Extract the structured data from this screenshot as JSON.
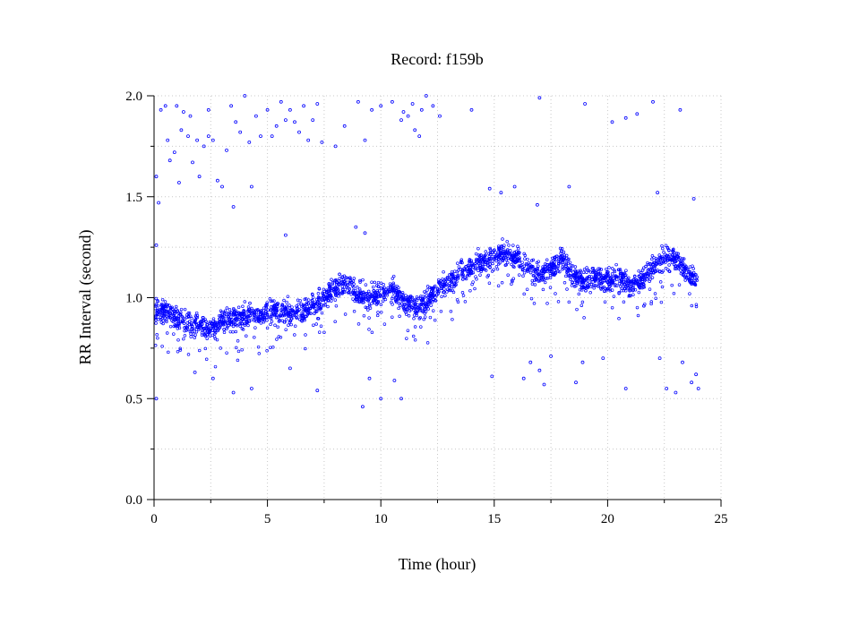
{
  "chart_data": {
    "type": "scatter",
    "title": "Record:  f159b",
    "xlabel": "Time (hour)",
    "ylabel": "RR Interval (second)",
    "xlim": [
      0,
      25
    ],
    "ylim": [
      0,
      2.0
    ],
    "x_ticks": [
      0,
      5,
      10,
      15,
      20,
      25
    ],
    "x_tick_labels": [
      "0",
      "5",
      "10",
      "15",
      "20",
      "25"
    ],
    "y_ticks": [
      0,
      0.5,
      1.0,
      1.5,
      2.0
    ],
    "y_tick_labels": [
      "0.0",
      "0.5",
      "1.0",
      "1.5",
      "2.0"
    ],
    "grid": true,
    "marker_color": "#0000ff",
    "series": [
      {
        "values_note": "",
        "trend": [
          [
            0.0,
            0.95
          ],
          [
            0.5,
            0.93
          ],
          [
            1.0,
            0.9
          ],
          [
            1.5,
            0.88
          ],
          [
            2.0,
            0.86
          ],
          [
            2.5,
            0.85
          ],
          [
            3.0,
            0.88
          ],
          [
            3.5,
            0.9
          ],
          [
            4.0,
            0.92
          ],
          [
            4.5,
            0.9
          ],
          [
            5.0,
            0.92
          ],
          [
            5.5,
            0.94
          ],
          [
            6.0,
            0.93
          ],
          [
            6.5,
            0.94
          ],
          [
            7.0,
            0.96
          ],
          [
            7.5,
            1.0
          ],
          [
            8.0,
            1.04
          ],
          [
            8.5,
            1.08
          ],
          [
            9.0,
            1.02
          ],
          [
            9.5,
            1.0
          ],
          [
            10.0,
            1.02
          ],
          [
            10.5,
            1.05
          ],
          [
            11.0,
            0.98
          ],
          [
            11.5,
            0.95
          ],
          [
            12.0,
            0.97
          ],
          [
            12.5,
            1.05
          ],
          [
            13.0,
            1.08
          ],
          [
            13.5,
            1.12
          ],
          [
            14.0,
            1.15
          ],
          [
            14.5,
            1.18
          ],
          [
            15.0,
            1.2
          ],
          [
            15.5,
            1.22
          ],
          [
            16.0,
            1.2
          ],
          [
            16.5,
            1.15
          ],
          [
            17.0,
            1.12
          ],
          [
            17.5,
            1.15
          ],
          [
            18.0,
            1.2
          ],
          [
            18.5,
            1.1
          ],
          [
            19.0,
            1.08
          ],
          [
            19.5,
            1.1
          ],
          [
            20.0,
            1.08
          ],
          [
            20.5,
            1.1
          ],
          [
            21.0,
            1.06
          ],
          [
            21.5,
            1.08
          ],
          [
            22.0,
            1.15
          ],
          [
            22.5,
            1.2
          ],
          [
            23.0,
            1.2
          ],
          [
            23.5,
            1.12
          ],
          [
            24.0,
            1.08
          ]
        ],
        "outliers": [
          [
            0.1,
            1.6
          ],
          [
            0.3,
            1.93
          ],
          [
            0.5,
            1.95
          ],
          [
            0.6,
            1.78
          ],
          [
            0.7,
            1.68
          ],
          [
            0.9,
            1.72
          ],
          [
            1.0,
            1.95
          ],
          [
            1.1,
            1.57
          ],
          [
            1.2,
            1.83
          ],
          [
            1.3,
            1.92
          ],
          [
            1.5,
            1.8
          ],
          [
            1.6,
            1.9
          ],
          [
            1.7,
            1.67
          ],
          [
            1.9,
            1.78
          ],
          [
            2.0,
            1.6
          ],
          [
            2.2,
            1.75
          ],
          [
            2.4,
            1.8
          ],
          [
            2.4,
            1.93
          ],
          [
            2.6,
            1.78
          ],
          [
            2.8,
            1.58
          ],
          [
            3.0,
            1.55
          ],
          [
            3.2,
            1.73
          ],
          [
            3.4,
            1.95
          ],
          [
            3.6,
            1.87
          ],
          [
            3.8,
            1.82
          ],
          [
            4.0,
            2.0
          ],
          [
            4.2,
            1.77
          ],
          [
            4.5,
            1.9
          ],
          [
            4.7,
            1.8
          ],
          [
            5.0,
            1.93
          ],
          [
            5.2,
            1.8
          ],
          [
            5.4,
            1.85
          ],
          [
            5.6,
            1.97
          ],
          [
            5.8,
            1.88
          ],
          [
            6.0,
            1.93
          ],
          [
            6.2,
            1.87
          ],
          [
            6.4,
            1.82
          ],
          [
            6.6,
            1.95
          ],
          [
            6.8,
            1.78
          ],
          [
            7.0,
            1.88
          ],
          [
            7.2,
            1.96
          ],
          [
            7.4,
            1.77
          ],
          [
            8.0,
            1.75
          ],
          [
            8.4,
            1.85
          ],
          [
            9.0,
            1.97
          ],
          [
            9.3,
            1.78
          ],
          [
            9.6,
            1.93
          ],
          [
            10.0,
            1.95
          ],
          [
            10.5,
            1.97
          ],
          [
            10.9,
            1.88
          ],
          [
            11.0,
            1.92
          ],
          [
            11.2,
            1.9
          ],
          [
            11.4,
            1.96
          ],
          [
            11.5,
            1.83
          ],
          [
            11.7,
            1.8
          ],
          [
            11.8,
            1.93
          ],
          [
            12.0,
            2.0
          ],
          [
            12.3,
            1.95
          ],
          [
            12.6,
            1.9
          ],
          [
            14.0,
            1.93
          ],
          [
            17.0,
            1.99
          ],
          [
            19.0,
            1.96
          ],
          [
            20.2,
            1.87
          ],
          [
            20.8,
            1.89
          ],
          [
            21.3,
            1.91
          ],
          [
            22.0,
            1.97
          ],
          [
            23.2,
            1.93
          ],
          [
            0.2,
            1.47
          ],
          [
            4.3,
            1.55
          ],
          [
            5.8,
            1.31
          ],
          [
            9.3,
            1.32
          ],
          [
            14.8,
            1.54
          ],
          [
            15.3,
            1.52
          ],
          [
            15.9,
            1.55
          ],
          [
            16.9,
            1.46
          ],
          [
            18.3,
            1.55
          ],
          [
            22.2,
            1.52
          ],
          [
            23.8,
            1.49
          ],
          [
            0.1,
            1.26
          ],
          [
            3.5,
            1.45
          ],
          [
            7.2,
            0.54
          ],
          [
            9.2,
            0.46
          ],
          [
            9.5,
            0.6
          ],
          [
            10.0,
            0.5
          ],
          [
            10.6,
            0.59
          ],
          [
            10.9,
            0.5
          ],
          [
            6.0,
            0.65
          ],
          [
            3.5,
            0.53
          ],
          [
            2.6,
            0.6
          ],
          [
            1.8,
            0.63
          ],
          [
            16.3,
            0.6
          ],
          [
            16.6,
            0.68
          ],
          [
            17.0,
            0.64
          ],
          [
            17.2,
            0.57
          ],
          [
            17.5,
            0.71
          ],
          [
            18.6,
            0.58
          ],
          [
            18.9,
            0.68
          ],
          [
            14.9,
            0.61
          ],
          [
            19.8,
            0.7
          ],
          [
            20.8,
            0.55
          ],
          [
            22.3,
            0.7
          ],
          [
            22.6,
            0.55
          ],
          [
            23.0,
            0.53
          ],
          [
            23.3,
            0.68
          ],
          [
            23.9,
            0.62
          ],
          [
            23.7,
            0.58
          ],
          [
            24.0,
            0.55
          ],
          [
            0.1,
            0.5
          ],
          [
            4.3,
            0.55
          ],
          [
            8.9,
            1.35
          ]
        ]
      }
    ]
  }
}
